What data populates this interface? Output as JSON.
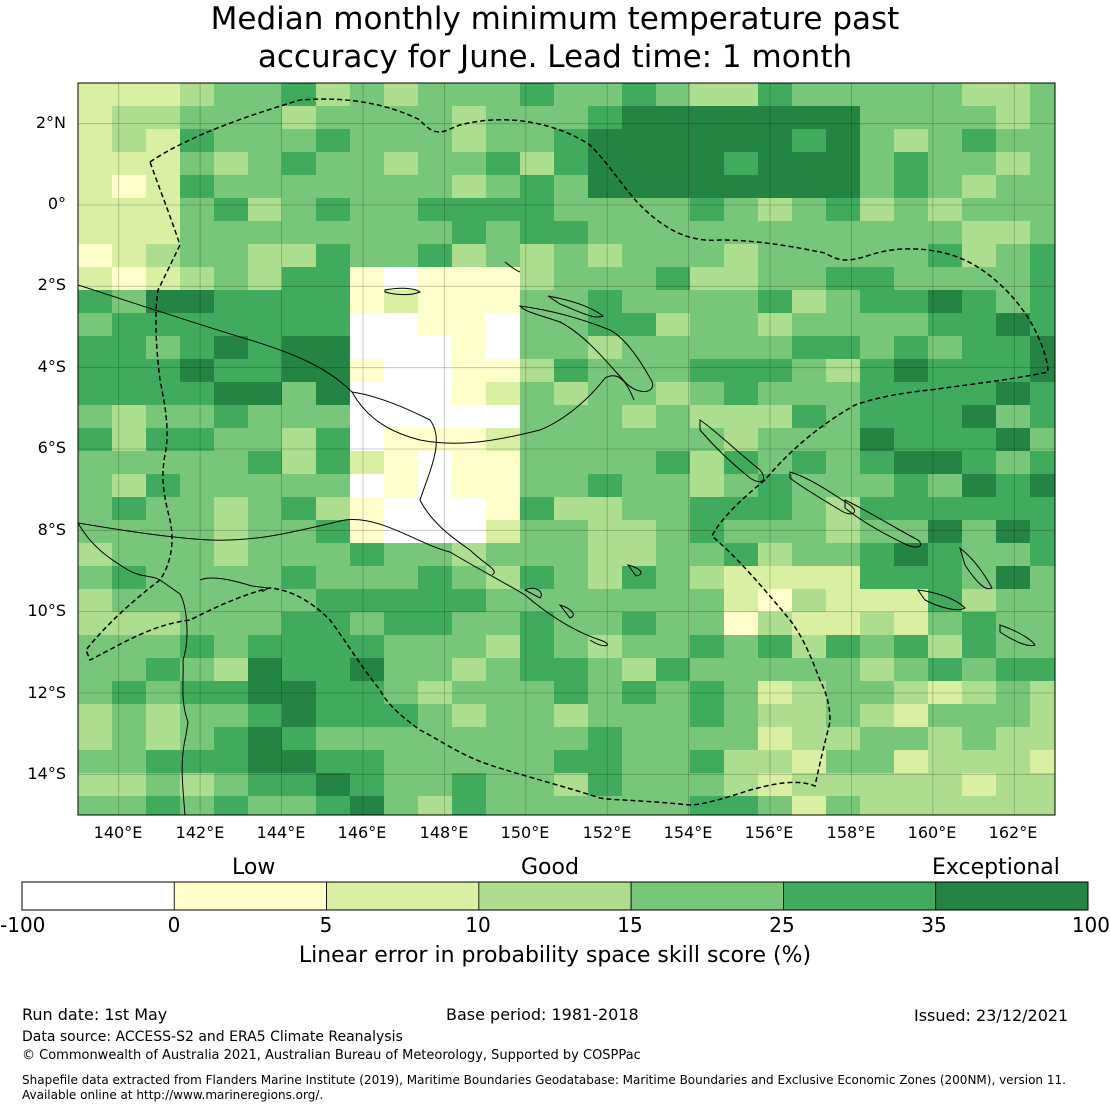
{
  "title": {
    "line1": "Median monthly minimum temperature past",
    "line2": "accuracy for June. Lead time: 1 month"
  },
  "map": {
    "lat_labels": [
      "2°N",
      "0°",
      "2°S",
      "4°S",
      "6°S",
      "8°S",
      "10°S",
      "12°S",
      "14°S"
    ],
    "lon_labels": [
      "140°E",
      "142°E",
      "144°E",
      "146°E",
      "148°E",
      "150°E",
      "152°E",
      "154°E",
      "156°E",
      "158°E",
      "160°E",
      "162°E"
    ],
    "lon_range": [
      139,
      163
    ],
    "lat_range": [
      -15,
      3
    ],
    "grid_cell_size_deg": 0.8
  },
  "colorbar": {
    "categories": [
      "Low",
      "Good",
      "Exceptional"
    ],
    "tick_labels": [
      "-100",
      "0",
      "5",
      "10",
      "15",
      "25",
      "35",
      "100"
    ],
    "bins": [
      {
        "from": -100,
        "to": 0,
        "color": "#ffffff"
      },
      {
        "from": 0,
        "to": 5,
        "color": "#ffffcc"
      },
      {
        "from": 5,
        "to": 10,
        "color": "#d9f0a3"
      },
      {
        "from": 10,
        "to": 15,
        "color": "#addd8e"
      },
      {
        "from": 15,
        "to": 25,
        "color": "#78c679"
      },
      {
        "from": 25,
        "to": 35,
        "color": "#41ab5d"
      },
      {
        "from": 35,
        "to": 100,
        "color": "#238443"
      }
    ],
    "label": "Linear error in probability space skill score (%)"
  },
  "footer": {
    "run_date": "Run date: 1st May",
    "base_period": "Base period: 1981-2018",
    "issued": "Issued: 23/12/2021",
    "data_source": "Data source: ACCESS-S2 and ERA5 Climate Reanalysis",
    "copyright": "© Commonwealth of Australia 2021, Australian Bureau of Meteorology, Supported by COSPPac",
    "shapefile_line1": "Shapefile data extracted from Flanders Marine Institute (2019), Maritime Boundaries Geodatabase: Maritime Boundaries and Exclusive Economic Zones (200NM), version 11.",
    "shapefile_line2": "Available online at http://www.marineregions.org/."
  }
}
